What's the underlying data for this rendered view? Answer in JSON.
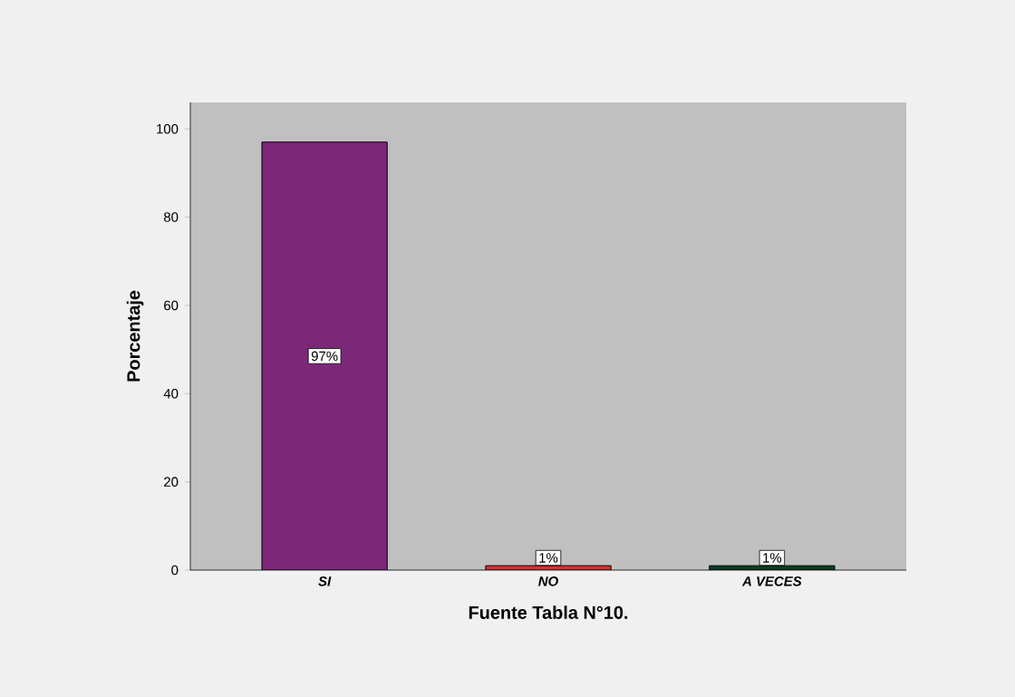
{
  "chart_data": {
    "type": "bar",
    "categories": [
      "SI",
      "NO",
      "A VECES"
    ],
    "values": [
      97,
      1,
      1
    ],
    "colors": [
      "#7b2878",
      "#d93030",
      "#0b3d22"
    ],
    "value_labels": [
      "97%",
      "1%",
      "1%"
    ],
    "xlabel": "Fuente Tabla N°10.",
    "ylabel": "Porcentaje",
    "ylim": [
      0,
      106
    ],
    "yticks": [
      0,
      20,
      40,
      60,
      80,
      100
    ]
  }
}
